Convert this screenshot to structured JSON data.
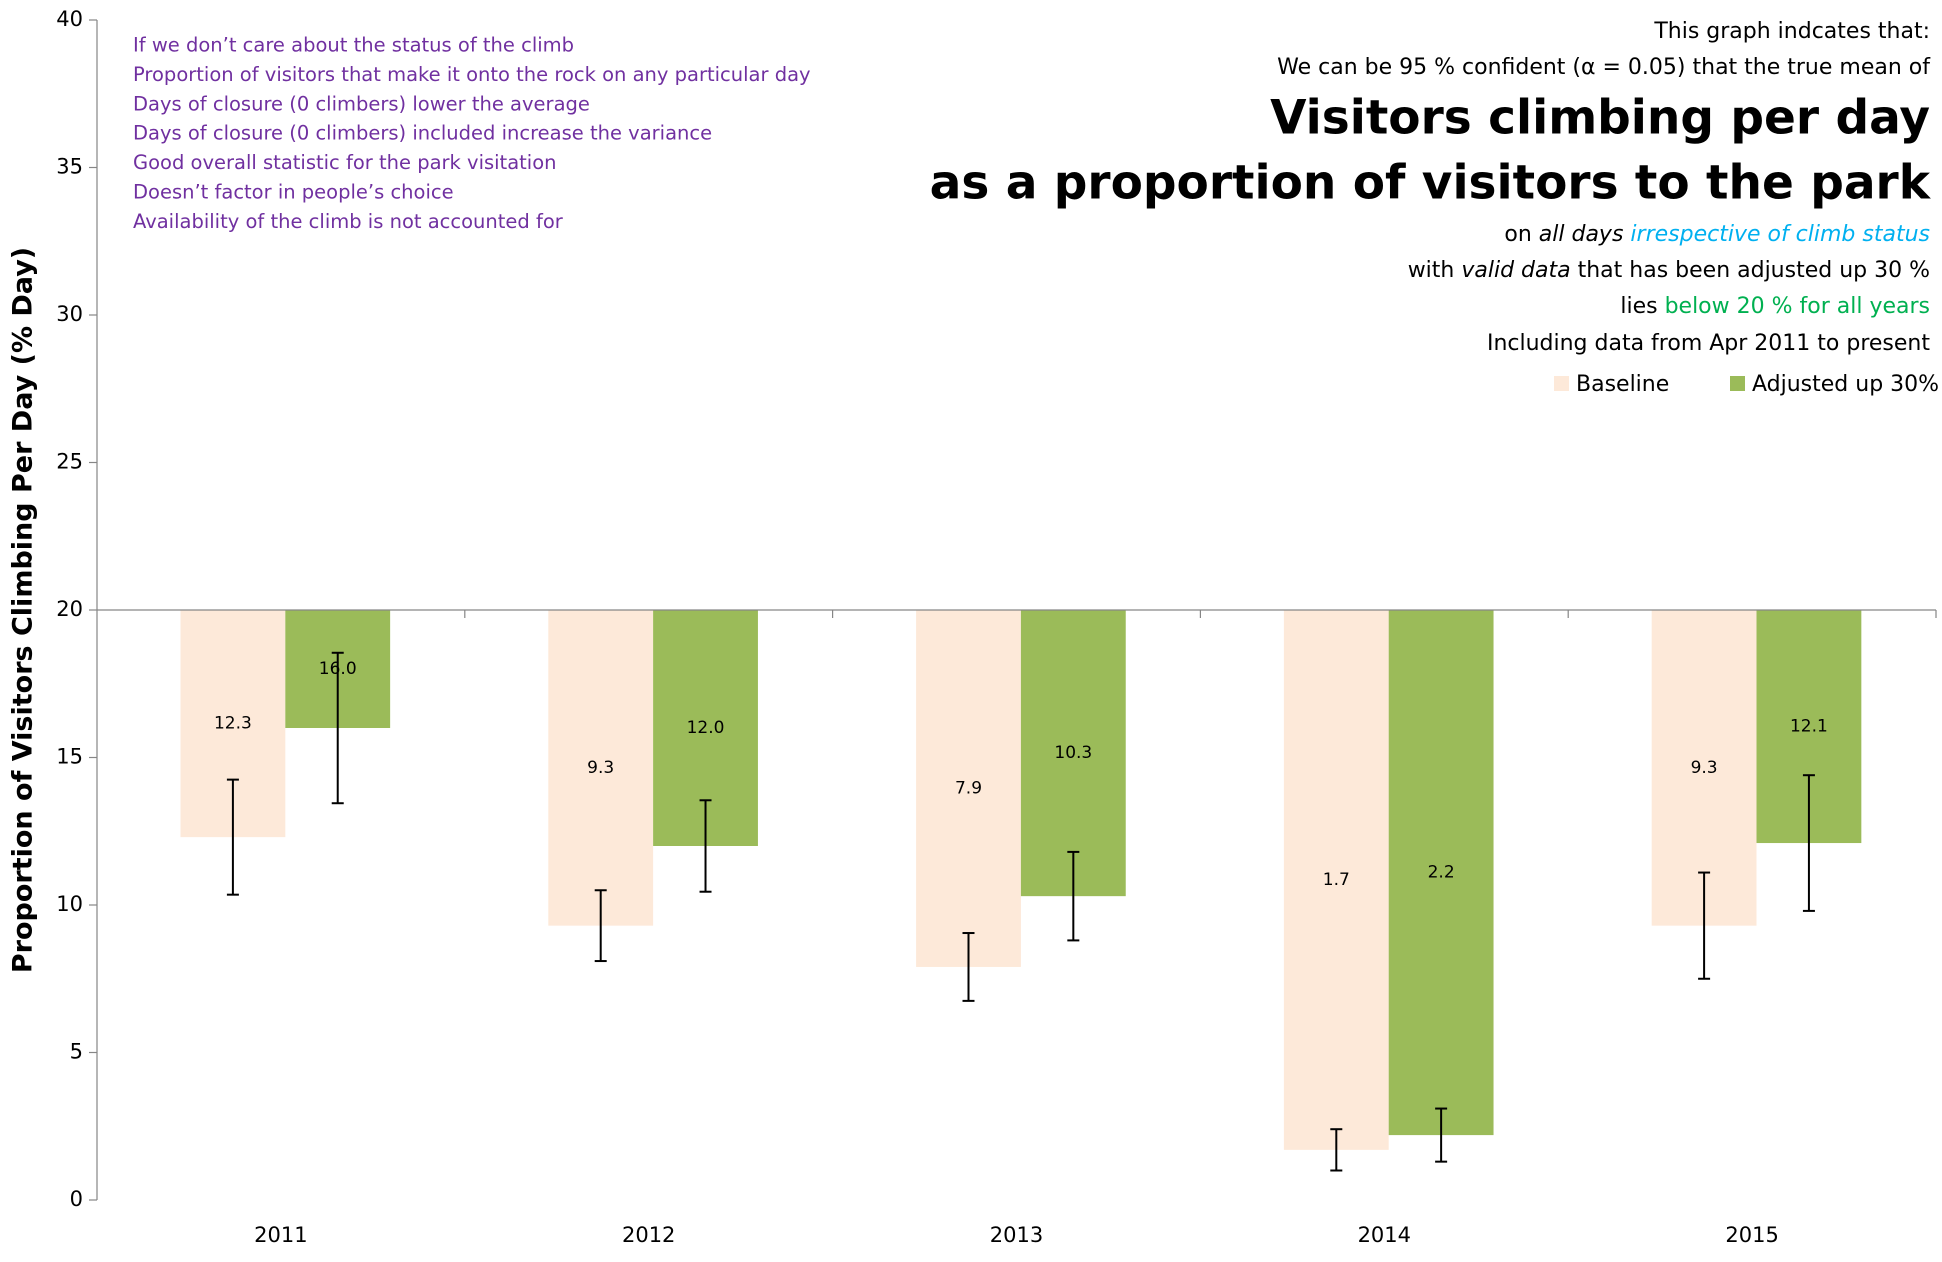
{
  "chart_data": {
    "type": "bar",
    "y_label": "Proportion of Visitors Climbing Per Day (% Day)",
    "categories": [
      "2011",
      "2012",
      "2013",
      "2014",
      "2015"
    ],
    "series": [
      {
        "name": "Baseline",
        "color": "#fde9d9",
        "values": [
          12.3,
          9.3,
          7.9,
          1.7,
          9.3
        ],
        "value_labels": [
          "12.3",
          "9.3",
          "7.9",
          "1.7",
          "9.3"
        ],
        "errors": [
          1.95,
          1.2,
          1.15,
          0.7,
          1.8
        ]
      },
      {
        "name": "Adjusted up 30%",
        "color": "#9bbb59",
        "values": [
          16,
          12,
          10.3,
          2.2,
          12.1
        ],
        "value_labels": [
          "16.0",
          "12.0",
          "10.3",
          "2.2",
          "12.1"
        ],
        "errors": [
          2.55,
          1.55,
          1.5,
          0.9,
          2.3
        ]
      }
    ],
    "bar_base": 20,
    "ylim": [
      0,
      40
    ],
    "yticks": [
      0,
      5,
      10,
      15,
      20,
      25,
      30,
      35,
      40
    ],
    "legend": "top-right",
    "notes": [
      "If we don’t care about the status of the climb",
      "Proportion of visitors that make it onto the rock on any particular day",
      "Days of closure (0 climbers) lower the average",
      "Days of closure (0 climbers) included increase the variance",
      "Good overall statistic for the park visitation",
      "Doesn’t factor in people’s choice",
      "Availability of the climb is not accounted for"
    ],
    "statement": {
      "intro": [
        "This graph indcates that:",
        "We can be 95 % confident (α = 0.05) that the true mean of"
      ],
      "title": [
        "Visitors climbing per day",
        "as a proportion of visitors to the park"
      ],
      "line1": [
        "on ",
        "all days ",
        "irrespective of climb status"
      ],
      "line2": [
        "with ",
        "valid data",
        " that has been adjusted up 30 %"
      ],
      "line3": [
        "lies ",
        "below 20 % for all years"
      ],
      "line4": "Including data from Apr 2011 to present"
    }
  }
}
